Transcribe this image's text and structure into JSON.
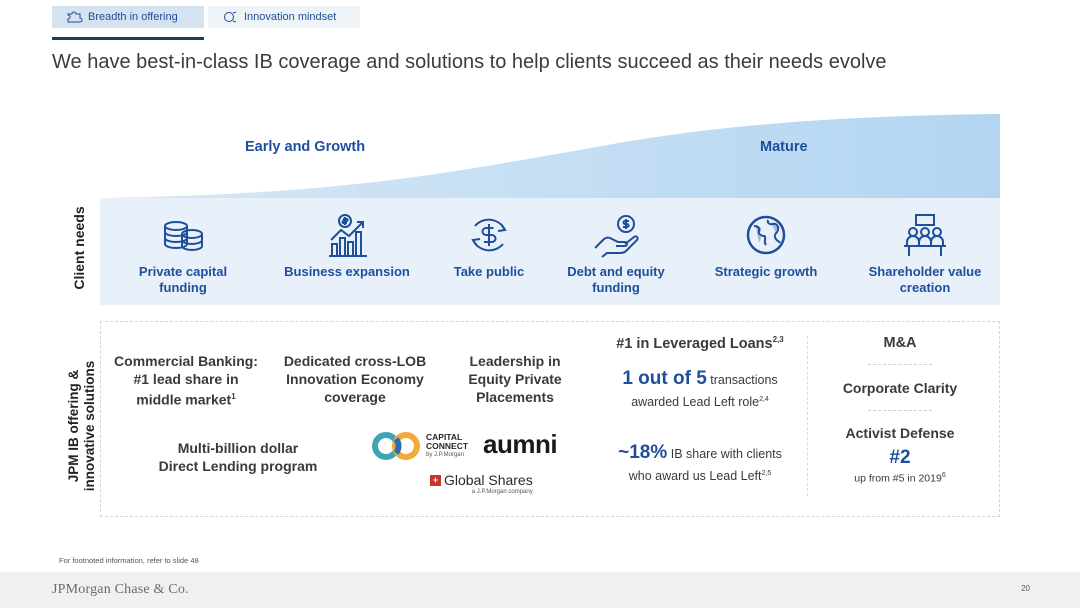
{
  "tabs": [
    {
      "label": "Breadth in offering",
      "icon": "puzzle-icon",
      "active": true
    },
    {
      "label": "Innovation mindset",
      "icon": "innovation-cycle-icon",
      "active": false
    }
  ],
  "title": "We have best-in-class IB coverage and solutions to help clients succeed as their needs evolve",
  "stages": {
    "early": "Early and Growth",
    "mature": "Mature"
  },
  "row_labels": {
    "client_needs": "Client needs",
    "jpm_line1": "JPM IB offering &",
    "jpm_line2": "innovative solutions"
  },
  "client_needs": [
    {
      "line1": "Private capital",
      "line2": "funding",
      "icon": "coin-stack-icon"
    },
    {
      "line1": "Business expansion",
      "line2": "",
      "icon": "growth-chart-icon"
    },
    {
      "line1": "Take public",
      "line2": "",
      "icon": "dollar-cycle-icon"
    },
    {
      "line1": "Debt and equity",
      "line2": "funding",
      "icon": "hand-money-icon"
    },
    {
      "line1": "Strategic growth",
      "line2": "",
      "icon": "globe-icon"
    },
    {
      "line1": "Shareholder value",
      "line2": "creation",
      "icon": "meeting-people-icon"
    }
  ],
  "offerings": {
    "commercial_banking": {
      "line1": "Commercial Banking:",
      "line2": "#1 lead share in",
      "line3": "middle market",
      "sup": "1"
    },
    "innovation_economy": {
      "line1": "Dedicated cross-LOB",
      "line2": "Innovation Economy",
      "line3": "coverage"
    },
    "equity_private": {
      "line1": "Leadership in",
      "line2": "Equity Private",
      "line3": "Placements"
    },
    "direct_lending": {
      "line1": "Multi-billion dollar",
      "line2": "Direct Lending program"
    }
  },
  "logos": {
    "capital_connect_line1": "CAPITAL",
    "capital_connect_line2": "CONNECT",
    "capital_connect_sub": "by J.P.Morgan",
    "aumni": "aumni",
    "global_shares": "Global Shares",
    "global_shares_sub": "a J.P.Morgan company"
  },
  "leveraged_loans": {
    "heading": "#1 in Leveraged Loans",
    "heading_sup": "2,3",
    "stat1_big": "1 out of 5",
    "stat1_text": "transactions",
    "stat1_line2": "awarded Lead Left role",
    "stat1_sup": "2,4",
    "stat2_big": "~18%",
    "stat2_text": "IB share with clients",
    "stat2_line2": "who award us Lead Left",
    "stat2_sup": "2,5"
  },
  "ma": {
    "heading": "M&A",
    "item1": "Corporate Clarity",
    "item2": "Activist Defense",
    "rank": "#2",
    "rank_sub": "up from #5 in 2019",
    "rank_sup": "6"
  },
  "footnote": "For footnoted information, refer to slide 48",
  "brand": "JPMorgan Chase & Co.",
  "page_number": "20",
  "colors": {
    "accent": "#1f4e9a",
    "band": "#e8f1fa",
    "curve": "#b7d7f2",
    "dark_navy": "#1a3a66"
  }
}
